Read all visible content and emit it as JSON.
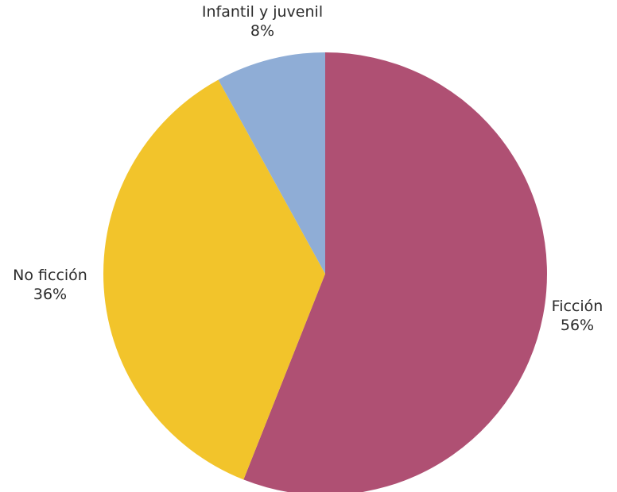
{
  "chart_data": {
    "type": "pie",
    "title": "",
    "start_angle_deg": 0,
    "direction": "clockwise",
    "slices": [
      {
        "label": "Ficción",
        "value": 56,
        "value_label": "56%",
        "color": "#af5073"
      },
      {
        "label": "No ficción",
        "value": 36,
        "value_label": "36%",
        "color": "#f2c42b"
      },
      {
        "label": "Infantil y juvenil",
        "value": 8,
        "value_label": "8%",
        "color": "#8fadd6"
      }
    ],
    "legend": "none",
    "data_labels": "outside"
  }
}
